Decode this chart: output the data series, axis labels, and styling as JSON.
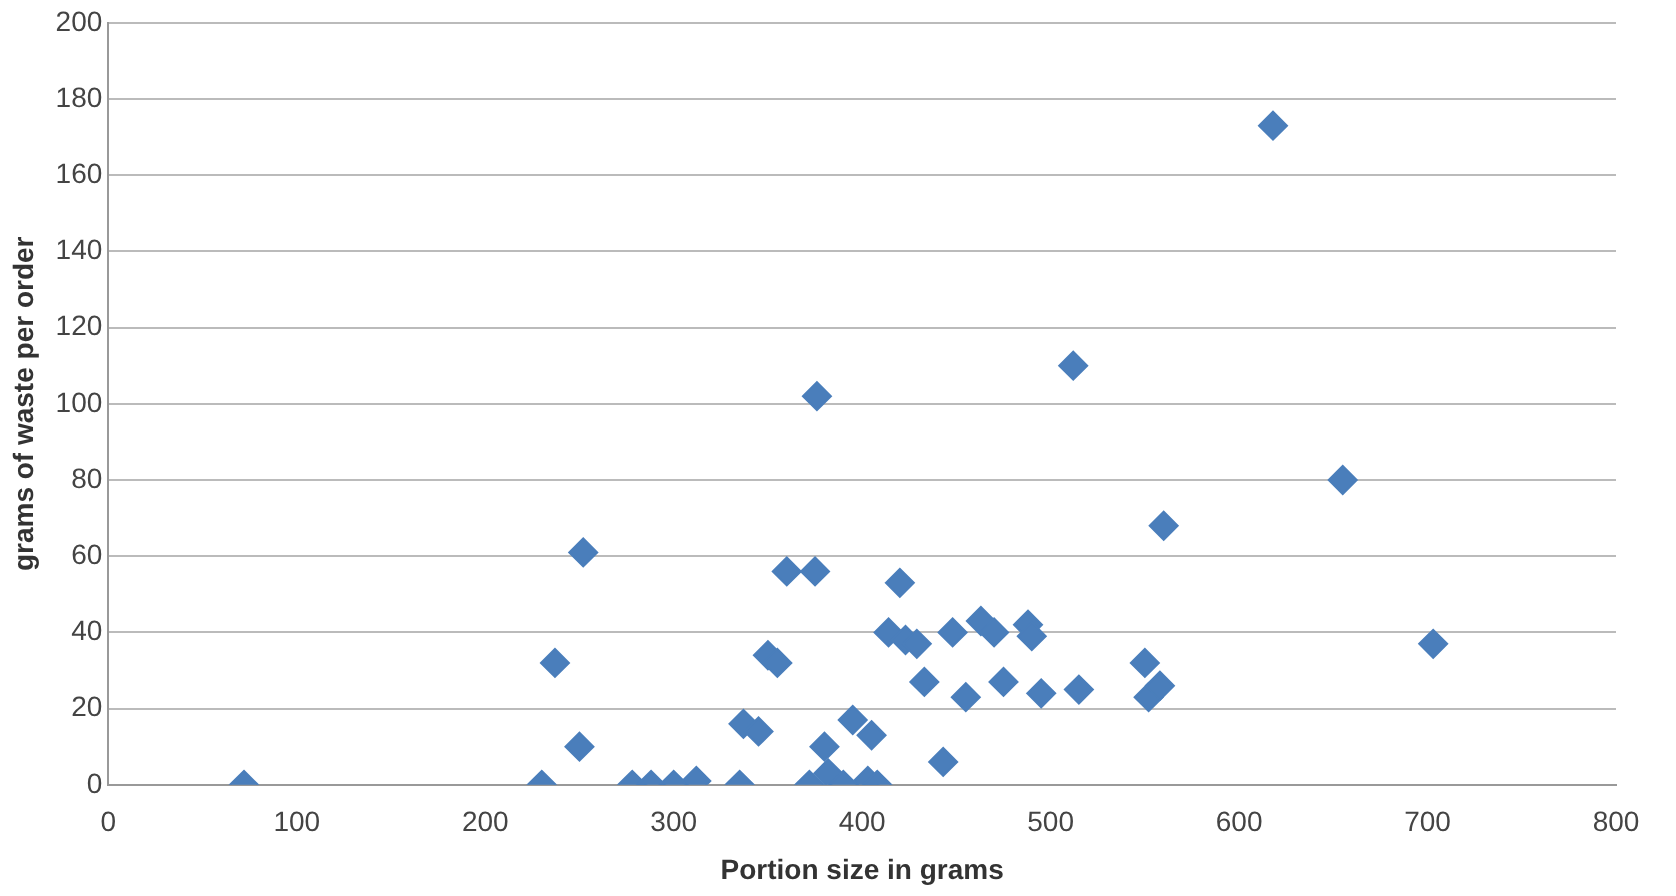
{
  "chart_data": {
    "type": "scatter",
    "xlabel": "Portion size in grams",
    "ylabel": "grams of waste per order",
    "marker": "diamond",
    "grid": "y",
    "legend": false,
    "xlim": [
      0,
      800
    ],
    "xticks": [
      0,
      100,
      200,
      300,
      400,
      500,
      600,
      700,
      800
    ],
    "ylim": [
      0,
      200
    ],
    "yticks": [
      0,
      20,
      40,
      60,
      80,
      100,
      120,
      140,
      160,
      180,
      200
    ],
    "series": [
      {
        "color": "#4a7ebb",
        "x": [
          72,
          230,
          237,
          250,
          252,
          278,
          288,
          300,
          312,
          335,
          337,
          345,
          350,
          355,
          360,
          375,
          376,
          372,
          380,
          382,
          390,
          395,
          403,
          405,
          408,
          414,
          420,
          423,
          429,
          433,
          443,
          448,
          455,
          463,
          470,
          475,
          488,
          490,
          495,
          512,
          515,
          550,
          552,
          558,
          560,
          618,
          655,
          703
        ],
        "values": [
          0,
          0,
          32,
          10,
          61,
          0,
          0,
          0,
          1,
          0,
          16,
          14,
          34,
          32,
          56,
          56,
          102,
          0,
          10,
          3,
          0,
          17,
          1,
          13,
          0,
          40,
          53,
          38,
          37,
          27,
          6,
          40,
          23,
          43,
          40,
          27,
          42,
          39,
          24,
          110,
          25,
          32,
          23,
          26,
          68,
          173,
          80,
          37
        ]
      }
    ]
  }
}
